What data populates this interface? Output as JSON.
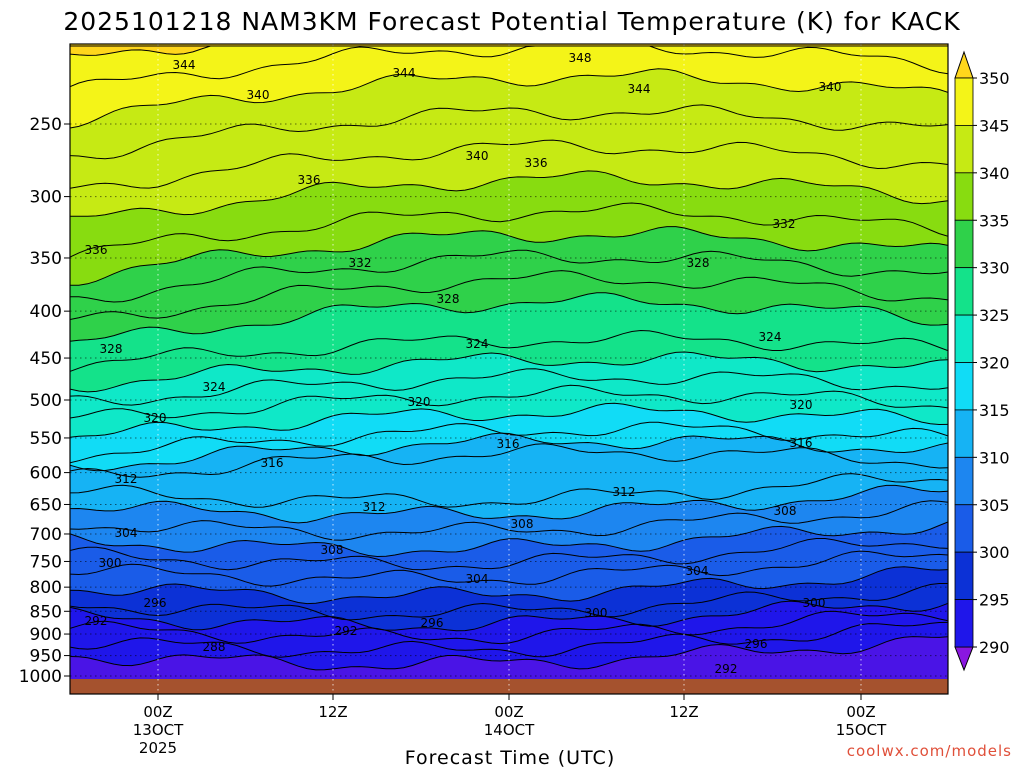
{
  "chart_data": {
    "type": "contour",
    "title": "2025101218 NAM3KM Forecast Potential Temperature (K) for KACK",
    "xlabel": "Forecast Time (UTC)",
    "credit": "coolwx.com/models",
    "y_axis": {
      "scale": "log-pressure",
      "ticks": [
        250,
        300,
        350,
        400,
        450,
        500,
        550,
        600,
        650,
        700,
        750,
        800,
        850,
        900,
        950,
        1000
      ],
      "range": [
        205,
        1010
      ]
    },
    "x_axis": {
      "ticks": [
        {
          "line1": "00Z",
          "line2": "13OCT",
          "line3": "2025"
        },
        {
          "line1": "12Z",
          "line2": "",
          "line3": ""
        },
        {
          "line1": "00Z",
          "line2": "14OCT",
          "line3": ""
        },
        {
          "line1": "12Z",
          "line2": "",
          "line3": ""
        },
        {
          "line1": "00Z",
          "line2": "15OCT",
          "line3": ""
        }
      ]
    },
    "colorbar": {
      "labels": [
        "290",
        "295",
        "300",
        "305",
        "310",
        "315",
        "320",
        "325",
        "330",
        "335",
        "340",
        "345",
        "350"
      ],
      "colors": [
        "#8a17e0",
        "#4a14e6",
        "#1f16ea",
        "#0c31d6",
        "#1a5ce8",
        "#1d86f0",
        "#16b3f4",
        "#11dcf6",
        "#0fe8c8",
        "#14e28a",
        "#2fd14a",
        "#88dc10",
        "#c6ea14",
        "#f4f418",
        "#ffd61c"
      ]
    },
    "contour_labels": [
      {
        "text": "344"
      },
      {
        "text": "344"
      },
      {
        "text": "348"
      },
      {
        "text": "344"
      },
      {
        "text": "340"
      },
      {
        "text": "340"
      },
      {
        "text": "340"
      },
      {
        "text": "336"
      },
      {
        "text": "336"
      },
      {
        "text": "336"
      },
      {
        "text": "332"
      },
      {
        "text": "332"
      },
      {
        "text": "328"
      },
      {
        "text": "328"
      },
      {
        "text": "328"
      },
      {
        "text": "324"
      },
      {
        "text": "324"
      },
      {
        "text": "324"
      },
      {
        "text": "320"
      },
      {
        "text": "320"
      },
      {
        "text": "320"
      },
      {
        "text": "316"
      },
      {
        "text": "316"
      },
      {
        "text": "316"
      },
      {
        "text": "312"
      },
      {
        "text": "312"
      },
      {
        "text": "312"
      },
      {
        "text": "308"
      },
      {
        "text": "308"
      },
      {
        "text": "308"
      },
      {
        "text": "304"
      },
      {
        "text": "304"
      },
      {
        "text": "304"
      },
      {
        "text": "300"
      },
      {
        "text": "300"
      },
      {
        "text": "300"
      },
      {
        "text": "296"
      },
      {
        "text": "296"
      },
      {
        "text": "296"
      },
      {
        "text": "292"
      },
      {
        "text": "292"
      },
      {
        "text": "292"
      },
      {
        "text": "288"
      }
    ]
  }
}
